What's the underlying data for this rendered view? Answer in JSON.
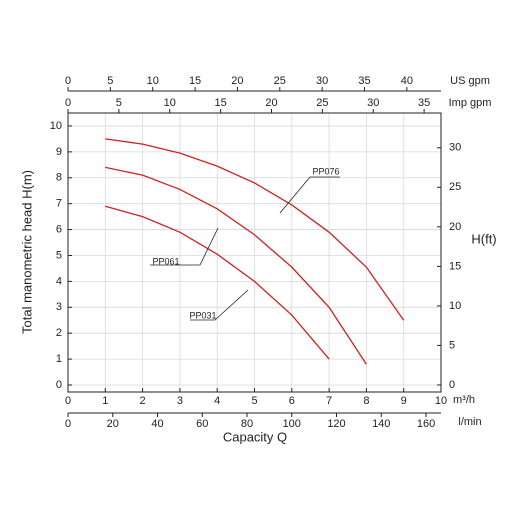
{
  "chart_data": {
    "type": "line",
    "x_label": "Capacity Q",
    "y_label": "Total manometric head H(m)",
    "y2_label": "H(ft)",
    "x_unit": "m³/h",
    "x": [
      1,
      2,
      3,
      4,
      5,
      6,
      7,
      8,
      9
    ],
    "xlim": [
      0,
      10
    ],
    "xticks": [
      0,
      1,
      2,
      3,
      4,
      5,
      6,
      7,
      8,
      9,
      10
    ],
    "ylim": [
      -0.27,
      10.5
    ],
    "yticks": [
      0,
      1,
      2,
      3,
      4,
      5,
      6,
      7,
      8,
      9,
      10
    ],
    "y2lim": [
      -0.89,
      34.4
    ],
    "y2ticks": [
      0,
      5,
      10,
      15,
      20,
      25,
      30
    ],
    "grid": true,
    "series": [
      {
        "name": "PP076",
        "color": "#cc2222",
        "values": [
          9.5,
          9.3,
          8.95,
          8.45,
          7.8,
          6.95,
          5.9,
          4.55,
          2.5
        ]
      },
      {
        "name": "PP061",
        "color": "#cc2222",
        "values": [
          8.4,
          8.1,
          7.55,
          6.8,
          5.8,
          4.55,
          3.0,
          0.8,
          null
        ]
      },
      {
        "name": "PP031",
        "color": "#cc2222",
        "values": [
          6.9,
          6.5,
          5.9,
          5.05,
          4.0,
          2.7,
          1.0,
          null,
          null
        ]
      }
    ],
    "secondary_x_axes": [
      {
        "label": "US gpm",
        "position": "top",
        "lim": [
          0,
          44.03
        ],
        "ticks": [
          0,
          5,
          10,
          15,
          20,
          25,
          30,
          35,
          40
        ]
      },
      {
        "label": "Imp gpm",
        "position": "top",
        "lim": [
          0,
          36.66
        ],
        "ticks": [
          0,
          5,
          10,
          15,
          20,
          25,
          30,
          35
        ]
      },
      {
        "label": "l/min",
        "position": "bottom",
        "lim": [
          0,
          166.7
        ],
        "ticks": [
          0,
          20,
          40,
          60,
          80,
          100,
          120,
          140,
          160
        ]
      }
    ]
  }
}
